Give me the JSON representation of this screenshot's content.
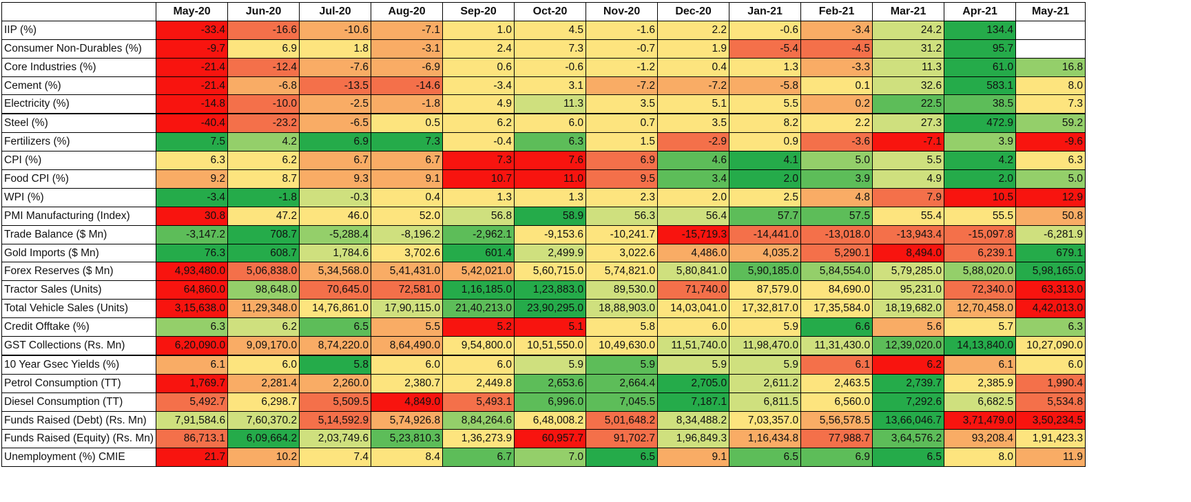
{
  "chart_data": {
    "type": "heatmap",
    "columns": [
      "May-20",
      "Jun-20",
      "Jul-20",
      "Aug-20",
      "Sep-20",
      "Oct-20",
      "Nov-20",
      "Dec-20",
      "Jan-21",
      "Feb-21",
      "Mar-21",
      "Apr-21",
      "May-21"
    ],
    "palette": {
      "R": "#f8140f",
      "O": "#f4704a",
      "A": "#f9ac65",
      "Y": "#fde47e",
      "L": "#cfe07e",
      "G": "#94cf6a",
      "M": "#5dbd59",
      "D": "#25ab4a",
      "W": "#ffffff"
    },
    "rows": [
      {
        "label": "IIP (%)",
        "values": [
          "-33.4",
          "-16.6",
          "-10.6",
          "-7.1",
          "1.0",
          "4.5",
          "-1.6",
          "2.2",
          "-0.6",
          "-3.4",
          "24.2",
          "134.4",
          ""
        ],
        "colors": [
          "R",
          "O",
          "A",
          "A",
          "Y",
          "Y",
          "Y",
          "Y",
          "Y",
          "A",
          "L",
          "D",
          "W"
        ]
      },
      {
        "label": "Consumer Non-Durables (%)",
        "values": [
          "-9.7",
          "6.9",
          "1.8",
          "-3.1",
          "2.4",
          "7.3",
          "-0.7",
          "1.9",
          "-5.4",
          "-4.5",
          "31.2",
          "95.7",
          ""
        ],
        "colors": [
          "R",
          "Y",
          "Y",
          "A",
          "Y",
          "Y",
          "Y",
          "Y",
          "O",
          "O",
          "L",
          "D",
          "W"
        ]
      },
      {
        "label": "Core Industries (%)",
        "values": [
          "-21.4",
          "-12.4",
          "-7.6",
          "-6.9",
          "0.6",
          "-0.6",
          "-1.2",
          "0.4",
          "1.3",
          "-3.3",
          "11.3",
          "61.0",
          "16.8"
        ],
        "colors": [
          "R",
          "O",
          "A",
          "A",
          "Y",
          "Y",
          "Y",
          "Y",
          "Y",
          "A",
          "L",
          "D",
          "G"
        ]
      },
      {
        "label": "Cement (%)",
        "values": [
          "-21.4",
          "-6.8",
          "-13.5",
          "-14.6",
          "-3.4",
          "3.1",
          "-7.2",
          "-7.2",
          "-5.8",
          "0.1",
          "32.6",
          "583.1",
          "8.0"
        ],
        "colors": [
          "R",
          "A",
          "O",
          "O",
          "Y",
          "Y",
          "A",
          "A",
          "A",
          "Y",
          "L",
          "D",
          "Y"
        ]
      },
      {
        "label": "Electricity (%)",
        "values": [
          "-14.8",
          "-10.0",
          "-2.5",
          "-1.8",
          "4.9",
          "11.3",
          "3.5",
          "5.1",
          "5.5",
          "0.2",
          "22.5",
          "38.5",
          "7.3"
        ],
        "colors": [
          "R",
          "O",
          "A",
          "A",
          "Y",
          "L",
          "Y",
          "Y",
          "Y",
          "A",
          "M",
          "M",
          "Y"
        ]
      },
      {
        "label": "Steel (%)",
        "values": [
          "-40.4",
          "-23.2",
          "-6.5",
          "0.5",
          "6.2",
          "6.0",
          "0.7",
          "3.5",
          "8.2",
          "2.2",
          "27.3",
          "472.9",
          "59.2"
        ],
        "colors": [
          "R",
          "O",
          "A",
          "Y",
          "Y",
          "Y",
          "Y",
          "Y",
          "Y",
          "Y",
          "L",
          "D",
          "G"
        ]
      },
      {
        "label": "Fertilizers (%)",
        "values": [
          "7.5",
          "4.2",
          "6.9",
          "7.3",
          "-0.4",
          "6.3",
          "1.5",
          "-2.9",
          "0.9",
          "-3.6",
          "-7.1",
          "3.9",
          "-9.6"
        ],
        "colors": [
          "D",
          "G",
          "D",
          "D",
          "Y",
          "M",
          "Y",
          "O",
          "Y",
          "O",
          "R",
          "G",
          "R"
        ]
      },
      {
        "label": "CPI (%)",
        "values": [
          "6.3",
          "6.2",
          "6.7",
          "6.7",
          "7.3",
          "7.6",
          "6.9",
          "4.6",
          "4.1",
          "5.0",
          "5.5",
          "4.2",
          "6.3"
        ],
        "colors": [
          "Y",
          "Y",
          "A",
          "A",
          "R",
          "R",
          "O",
          "M",
          "D",
          "G",
          "L",
          "D",
          "Y"
        ]
      },
      {
        "label": "Food CPI (%)",
        "values": [
          "9.2",
          "8.7",
          "9.3",
          "9.1",
          "10.7",
          "11.0",
          "9.5",
          "3.4",
          "2.0",
          "3.9",
          "4.9",
          "2.0",
          "5.0"
        ],
        "colors": [
          "A",
          "Y",
          "A",
          "A",
          "R",
          "R",
          "O",
          "M",
          "D",
          "M",
          "L",
          "D",
          "G"
        ]
      },
      {
        "label": "WPI (%)",
        "values": [
          "-3.4",
          "-1.8",
          "-0.3",
          "0.4",
          "1.3",
          "1.3",
          "2.3",
          "2.0",
          "2.5",
          "4.8",
          "7.9",
          "10.5",
          "12.9"
        ],
        "colors": [
          "D",
          "D",
          "L",
          "Y",
          "Y",
          "Y",
          "Y",
          "Y",
          "Y",
          "A",
          "O",
          "R",
          "R"
        ]
      },
      {
        "label": "PMI Manufacturing (Index)",
        "values": [
          "30.8",
          "47.2",
          "46.0",
          "52.0",
          "56.8",
          "58.9",
          "56.3",
          "56.4",
          "57.7",
          "57.5",
          "55.4",
          "55.5",
          "50.8"
        ],
        "colors": [
          "R",
          "Y",
          "Y",
          "Y",
          "L",
          "D",
          "L",
          "L",
          "M",
          "M",
          "Y",
          "Y",
          "A"
        ]
      },
      {
        "label": "Trade Balance ($ Mn)",
        "values": [
          "-3,147.2",
          "708.7",
          "-5,288.4",
          "-8,196.2",
          "-2,962.1",
          "-9,153.6",
          "-10,241.7",
          "-15,719.3",
          "-14,441.0",
          "-13,018.0",
          "-13,943.4",
          "-15,097.8",
          "-6,281.9"
        ],
        "colors": [
          "M",
          "D",
          "G",
          "L",
          "M",
          "Y",
          "Y",
          "R",
          "O",
          "O",
          "O",
          "O",
          "L"
        ]
      },
      {
        "label": "Gold Imports ($ Mn)",
        "values": [
          "76.3",
          "608.7",
          "1,784.6",
          "3,702.6",
          "601.4",
          "2,499.9",
          "3,022.6",
          "4,486.0",
          "4,035.2",
          "5,290.1",
          "8,494.0",
          "6,239.1",
          "679.1"
        ],
        "colors": [
          "D",
          "D",
          "L",
          "Y",
          "D",
          "L",
          "Y",
          "A",
          "A",
          "O",
          "R",
          "O",
          "D"
        ]
      },
      {
        "label": "Forex Reserves ($ Mn)",
        "values": [
          "4,93,480.0",
          "5,06,838.0",
          "5,34,568.0",
          "5,41,431.0",
          "5,42,021.0",
          "5,60,715.0",
          "5,74,821.0",
          "5,80,841.0",
          "5,90,185.0",
          "5,84,554.0",
          "5,79,285.0",
          "5,88,020.0",
          "5,98,165.0"
        ],
        "colors": [
          "R",
          "O",
          "A",
          "A",
          "A",
          "Y",
          "Y",
          "L",
          "M",
          "G",
          "L",
          "G",
          "D"
        ]
      },
      {
        "label": "Tractor Sales (Units)",
        "values": [
          "64,860.0",
          "98,648.0",
          "70,645.0",
          "72,581.0",
          "1,16,185.0",
          "1,23,883.0",
          "89,530.0",
          "71,740.0",
          "87,579.0",
          "84,690.0",
          "95,231.0",
          "72,340.0",
          "63,313.0"
        ],
        "colors": [
          "R",
          "G",
          "O",
          "O",
          "D",
          "D",
          "L",
          "O",
          "Y",
          "Y",
          "L",
          "O",
          "R"
        ]
      },
      {
        "label": "Total Vehicle Sales (Units)",
        "values": [
          "3,15,638.0",
          "11,29,348.0",
          "14,76,861.0",
          "17,90,115.0",
          "21,40,213.0",
          "23,90,295.0",
          "18,88,903.0",
          "14,03,041.0",
          "17,32,817.0",
          "17,35,584.0",
          "18,19,682.0",
          "12,70,458.0",
          "4,42,013.0"
        ],
        "colors": [
          "R",
          "A",
          "Y",
          "L",
          "M",
          "D",
          "L",
          "Y",
          "Y",
          "Y",
          "L",
          "A",
          "R"
        ]
      },
      {
        "label": "Credit Offtake (%)",
        "values": [
          "6.3",
          "6.2",
          "6.5",
          "5.5",
          "5.2",
          "5.1",
          "5.8",
          "6.0",
          "5.9",
          "6.6",
          "5.6",
          "5.7",
          "6.3"
        ],
        "colors": [
          "G",
          "L",
          "M",
          "A",
          "R",
          "R",
          "Y",
          "Y",
          "Y",
          "D",
          "A",
          "Y",
          "G"
        ]
      },
      {
        "label": "GST Collections (Rs. Mn)",
        "values": [
          "6,20,090.0",
          "9,09,170.0",
          "8,74,220.0",
          "8,64,490.0",
          "9,54,800.0",
          "10,51,550.0",
          "10,49,630.0",
          "11,51,740.0",
          "11,98,470.0",
          "11,31,430.0",
          "12,39,020.0",
          "14,13,840.0",
          "10,27,090.0"
        ],
        "colors": [
          "R",
          "A",
          "A",
          "A",
          "Y",
          "Y",
          "Y",
          "L",
          "L",
          "L",
          "M",
          "D",
          "Y"
        ]
      },
      {
        "label": "10 Year Gsec Yields (%)",
        "values": [
          "6.1",
          "6.0",
          "5.8",
          "6.0",
          "6.0",
          "5.9",
          "5.9",
          "5.9",
          "5.9",
          "6.1",
          "6.2",
          "6.1",
          "6.0"
        ],
        "colors": [
          "A",
          "Y",
          "D",
          "Y",
          "Y",
          "L",
          "M",
          "L",
          "L",
          "O",
          "R",
          "A",
          "Y"
        ]
      },
      {
        "label": "Petrol Consumption (TT)",
        "values": [
          "1,769.7",
          "2,281.4",
          "2,260.0",
          "2,380.7",
          "2,449.8",
          "2,653.6",
          "2,664.4",
          "2,705.0",
          "2,611.2",
          "2,463.5",
          "2,739.7",
          "2,385.9",
          "1,990.4"
        ],
        "colors": [
          "R",
          "A",
          "A",
          "Y",
          "Y",
          "M",
          "M",
          "D",
          "L",
          "Y",
          "D",
          "Y",
          "O"
        ]
      },
      {
        "label": "Diesel Consumption (TT)",
        "values": [
          "5,492.7",
          "6,298.7",
          "5,509.5",
          "4,849.0",
          "5,493.1",
          "6,996.0",
          "7,045.5",
          "7,187.1",
          "6,811.5",
          "6,560.0",
          "7,292.6",
          "6,682.5",
          "5,534.8"
        ],
        "colors": [
          "O",
          "Y",
          "O",
          "R",
          "O",
          "M",
          "M",
          "D",
          "L",
          "Y",
          "D",
          "L",
          "O"
        ]
      },
      {
        "label": "Funds Raised (Debt) (Rs. Mn)",
        "values": [
          "7,91,584.6",
          "7,60,370.2",
          "5,14,592.9",
          "5,74,926.8",
          "8,84,264.6",
          "6,48,008.2",
          "5,01,648.2",
          "8,34,488.2",
          "7,03,357.0",
          "5,56,578.5",
          "13,66,046.7",
          "3,71,479.0",
          "3,50,234.5"
        ],
        "colors": [
          "L",
          "L",
          "O",
          "A",
          "G",
          "Y",
          "O",
          "L",
          "Y",
          "A",
          "D",
          "R",
          "R"
        ]
      },
      {
        "label": "Funds Raised (Equity) (Rs. Mn)",
        "values": [
          "86,713.1",
          "6,09,664.2",
          "2,03,749.6",
          "5,23,810.3",
          "1,36,273.9",
          "60,957.7",
          "91,702.7",
          "1,96,849.3",
          "1,16,434.8",
          "77,988.7",
          "3,64,576.2",
          "93,208.4",
          "1,91,423.3"
        ],
        "colors": [
          "O",
          "D",
          "L",
          "M",
          "Y",
          "R",
          "O",
          "L",
          "A",
          "O",
          "M",
          "A",
          "Y"
        ]
      },
      {
        "label": "Unemployment (%) CMIE",
        "values": [
          "21.7",
          "10.2",
          "7.4",
          "8.4",
          "6.7",
          "7.0",
          "6.5",
          "9.1",
          "6.5",
          "6.9",
          "6.5",
          "8.0",
          "11.9"
        ],
        "colors": [
          "R",
          "A",
          "Y",
          "Y",
          "M",
          "G",
          "D",
          "A",
          "M",
          "M",
          "D",
          "Y",
          "A"
        ]
      }
    ]
  }
}
